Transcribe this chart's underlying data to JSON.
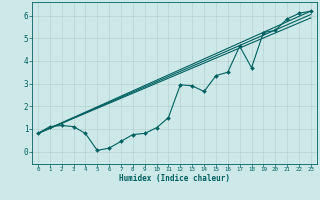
{
  "xlabel": "Humidex (Indice chaleur)",
  "xlim": [
    -0.5,
    23.5
  ],
  "ylim": [
    -0.55,
    6.6
  ],
  "xticks": [
    0,
    1,
    2,
    3,
    4,
    5,
    6,
    7,
    8,
    9,
    10,
    11,
    12,
    13,
    14,
    15,
    16,
    17,
    18,
    19,
    20,
    21,
    22,
    23
  ],
  "yticks": [
    0,
    1,
    2,
    3,
    4,
    5,
    6
  ],
  "bg_color": "#cde8e8",
  "line_color": "#006060",
  "grid_color": "#b8d0d0",
  "line1_x": [
    0,
    1,
    2,
    3,
    4,
    5,
    6,
    7,
    8,
    9,
    10,
    11,
    12,
    13,
    14,
    15,
    16,
    17,
    18,
    19,
    20,
    21,
    22,
    23
  ],
  "line1_y": [
    0.8,
    1.1,
    1.15,
    1.1,
    0.8,
    0.05,
    0.15,
    0.45,
    0.75,
    0.8,
    1.05,
    1.5,
    2.95,
    2.9,
    2.65,
    3.35,
    3.5,
    4.65,
    3.7,
    5.25,
    5.35,
    5.85,
    6.1,
    6.2
  ],
  "line2_x": [
    0,
    23
  ],
  "line2_y": [
    0.8,
    6.2
  ],
  "line3_x": [
    0,
    23
  ],
  "line3_y": [
    0.8,
    6.05
  ],
  "line4_x": [
    0,
    23
  ],
  "line4_y": [
    0.8,
    5.9
  ],
  "figwidth": 3.2,
  "figheight": 2.0,
  "dpi": 100
}
